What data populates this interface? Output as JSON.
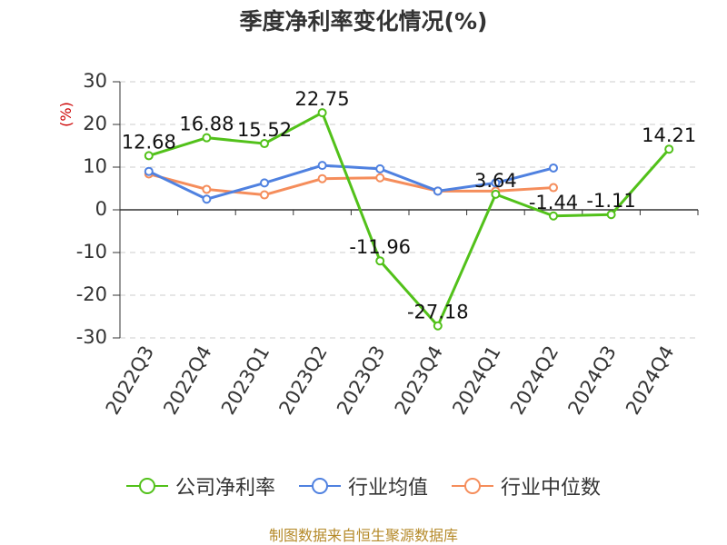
{
  "title": "季度净利率变化情况(%)",
  "source": "制图数据来自恒生聚源数据库",
  "colors": {
    "company": "#52c11a",
    "industry_avg": "#4f81e0",
    "industry_median": "#f58d5b"
  },
  "chart_data": {
    "type": "line",
    "title": "季度净利率变化情况(%)",
    "ylabel": "(%)",
    "xlabel": "",
    "ylim": [
      -30,
      30
    ],
    "yticks": [
      30,
      20,
      10,
      0,
      -10,
      -20,
      -30
    ],
    "grid": true,
    "legend_position": "bottom",
    "categories": [
      "2022Q3",
      "2022Q4",
      "2023Q1",
      "2023Q2",
      "2023Q3",
      "2023Q4",
      "2024Q1",
      "2024Q2",
      "2024Q3",
      "2024Q4"
    ],
    "series": [
      {
        "name": "公司净利率",
        "color": "#52c11a",
        "values": [
          12.68,
          16.88,
          15.52,
          22.75,
          -11.96,
          -27.18,
          3.64,
          -1.44,
          -1.11,
          14.21
        ],
        "labels": [
          "12.68",
          "16.88",
          "15.52",
          "22.75",
          "-11.96",
          "-27.18",
          "3.64",
          "-1.44",
          "-1.11",
          "14.21"
        ]
      },
      {
        "name": "行业均值",
        "color": "#4f81e0",
        "values": [
          9.0,
          2.5,
          6.3,
          10.4,
          9.6,
          4.4,
          6.3,
          9.8,
          null,
          null
        ]
      },
      {
        "name": "行业中位数",
        "color": "#f58d5b",
        "values": [
          8.4,
          4.8,
          3.5,
          7.3,
          7.5,
          4.4,
          4.4,
          5.2,
          null,
          null
        ]
      }
    ]
  }
}
